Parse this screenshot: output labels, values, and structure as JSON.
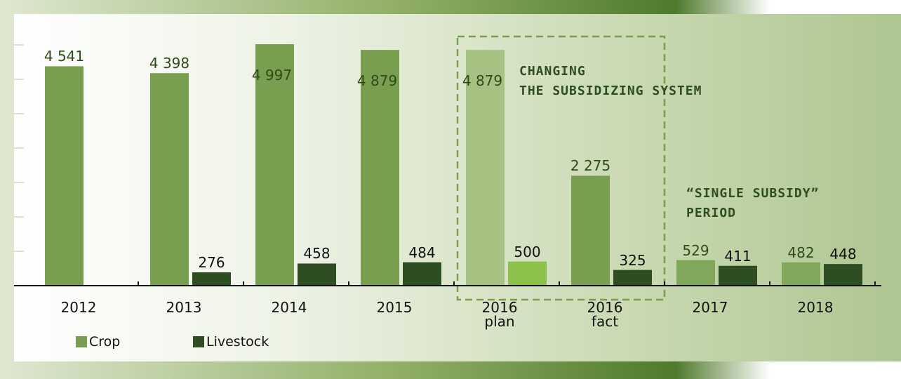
{
  "chart_data": {
    "type": "bar",
    "categories": [
      "2012",
      "2013",
      "2014",
      "2015",
      "2016\nplan",
      "2016\nfact",
      "2017",
      "2018"
    ],
    "series": [
      {
        "name": "Crop",
        "color": "#7a9e50",
        "colors": [
          "#7a9e50",
          "#7a9e50",
          "#7a9e50",
          "#7a9e50",
          "#a6c283",
          "#7a9e50",
          "#80a75a",
          "#80a75a"
        ],
        "values": [
          4541,
          4398,
          4997,
          4879,
          4879,
          2275,
          529,
          482
        ],
        "value_labels": [
          "4 541",
          "4 398",
          "4 997",
          "4 879",
          "4 879",
          "2 275",
          "529",
          "482"
        ]
      },
      {
        "name": "Livestock",
        "color": "#2e4d22",
        "colors": [
          "#2e4d22",
          "#2e4d22",
          "#2e4d22",
          "#2e4d22",
          "#8cc04b",
          "#2e4d22",
          "#2e4d22",
          "#2e4d22"
        ],
        "values": [
          null,
          276,
          458,
          484,
          500,
          325,
          411,
          448
        ]
      }
    ],
    "ylim": [
      0,
      5000
    ],
    "annotations": [
      "CHANGING\nTHE SUBSIDIZING SYSTEM",
      "“SINGLE SUBSIDY”\nPERIOD"
    ]
  }
}
